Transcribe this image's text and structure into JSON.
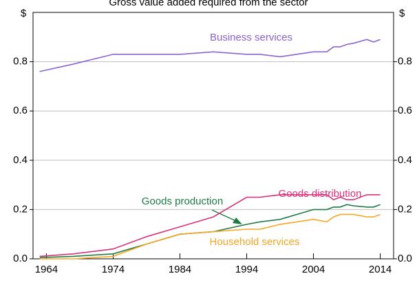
{
  "chart_data": {
    "type": "line",
    "title": "Gross value added required from the sector",
    "y_unit": "$",
    "x": [
      1963,
      1968,
      1974,
      1979,
      1984,
      1989,
      1994,
      1996,
      1999,
      2004,
      2006,
      2007,
      2008,
      2009,
      2010,
      2012,
      2013,
      2014
    ],
    "xlim": [
      1962,
      2016
    ],
    "xticks": [
      1964,
      1974,
      1984,
      1994,
      2004,
      2014
    ],
    "ylim": [
      0,
      1
    ],
    "yticks": [
      {
        "value": 0,
        "label": "0.0"
      },
      0.2,
      0.4,
      0.6,
      0.8
    ],
    "grid": true,
    "series": [
      {
        "name": "Business services",
        "color": "#8a63d2",
        "values": [
          0.76,
          0.79,
          0.83,
          0.83,
          0.83,
          0.84,
          0.83,
          0.83,
          0.82,
          0.84,
          0.84,
          0.86,
          0.86,
          0.87,
          0.875,
          0.89,
          0.88,
          0.89
        ]
      },
      {
        "name": "Goods distribution",
        "color": "#d6317a",
        "values": [
          0.01,
          0.02,
          0.04,
          0.09,
          0.13,
          0.17,
          0.25,
          0.25,
          0.26,
          0.26,
          0.26,
          0.24,
          0.25,
          0.24,
          0.24,
          0.26,
          0.26,
          0.26
        ]
      },
      {
        "name": "Goods production",
        "color": "#1e7a45",
        "values": [
          0.005,
          0.01,
          0.02,
          0.06,
          0.1,
          0.11,
          0.14,
          0.15,
          0.16,
          0.2,
          0.2,
          0.21,
          0.21,
          0.22,
          0.215,
          0.21,
          0.21,
          0.22
        ]
      },
      {
        "name": "Household services",
        "color": "#f5a623",
        "values": [
          0,
          0,
          0.01,
          0.06,
          0.1,
          0.11,
          0.12,
          0.12,
          0.14,
          0.16,
          0.15,
          0.17,
          0.18,
          0.18,
          0.18,
          0.17,
          0.17,
          0.18
        ]
      }
    ]
  }
}
